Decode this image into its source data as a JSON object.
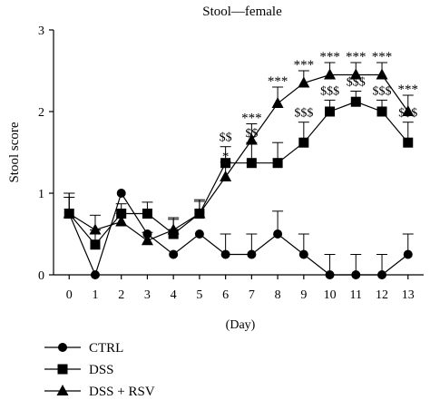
{
  "chart_data": {
    "type": "line",
    "title": "Stool—female",
    "xlabel": "(Day)",
    "ylabel": "Stool score",
    "x": [
      0,
      1,
      2,
      3,
      4,
      5,
      6,
      7,
      8,
      9,
      10,
      11,
      12,
      13
    ],
    "xlim": [
      -0.6,
      13.6
    ],
    "ylim": [
      0,
      3
    ],
    "yticks": [
      0,
      1,
      2,
      3
    ],
    "grid": false,
    "legend_position": "bottom-left",
    "series": [
      {
        "name": "CTRL",
        "marker": "circle",
        "values": [
          0.75,
          0,
          1,
          0.5,
          0.25,
          0.5,
          0.25,
          0.25,
          0.5,
          0.25,
          0,
          0,
          0,
          0.25
        ],
        "err": [
          0.25,
          0,
          0,
          0,
          0,
          0,
          0.25,
          0.25,
          0.28,
          0.25,
          0.25,
          0.25,
          0.25,
          0.25
        ]
      },
      {
        "name": "DSS",
        "marker": "square",
        "values": [
          0.75,
          0.37,
          0.75,
          0.75,
          0.5,
          0.75,
          1.37,
          1.37,
          1.37,
          1.62,
          2,
          2.12,
          2,
          1.62
        ],
        "err": [
          0.25,
          0.18,
          0.12,
          0.14,
          0.18,
          0.17,
          0.2,
          0.25,
          0.25,
          0.25,
          0.14,
          0.13,
          0.14,
          0.25
        ]
      },
      {
        "name": "DSS + RSV",
        "marker": "triangle",
        "values": [
          0.75,
          0.55,
          0.65,
          0.42,
          0.55,
          0.75,
          1.2,
          1.65,
          2.1,
          2.35,
          2.45,
          2.45,
          2.45,
          2
        ],
        "err": [
          0.2,
          0.18,
          0.1,
          0.1,
          0.15,
          0.15,
          0.18,
          0.2,
          0.2,
          0.15,
          0.15,
          0.15,
          0.15,
          0.2
        ]
      }
    ],
    "annotations_dss": [
      {
        "x": 6,
        "text": "$$"
      },
      {
        "x": 7,
        "text": "$$"
      },
      {
        "x": 9,
        "text": "$$$"
      },
      {
        "x": 10,
        "text": "$$$"
      },
      {
        "x": 11,
        "text": "$$$"
      },
      {
        "x": 12,
        "text": "$$$"
      },
      {
        "x": 13,
        "text": "$$$"
      }
    ],
    "annotations_rsv": [
      {
        "x": 6,
        "text": "*"
      },
      {
        "x": 7,
        "text": "***"
      },
      {
        "x": 8,
        "text": "***"
      },
      {
        "x": 9,
        "text": "***"
      },
      {
        "x": 10,
        "text": "***"
      },
      {
        "x": 11,
        "text": "***"
      },
      {
        "x": 12,
        "text": "***"
      },
      {
        "x": 13,
        "text": "***"
      }
    ]
  }
}
